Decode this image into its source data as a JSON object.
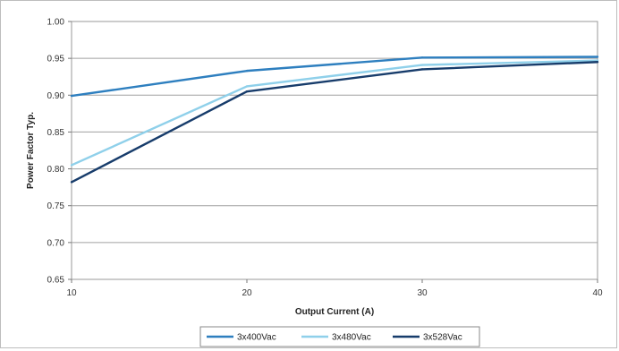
{
  "chart_data": {
    "type": "line",
    "xlabel": "Output Current (A)",
    "ylabel": "Power Factor Typ.",
    "x": [
      10,
      20,
      30,
      40
    ],
    "xlim": [
      10,
      40
    ],
    "ylim": [
      0.65,
      1.0
    ],
    "yticks": [
      "0.65",
      "0.70",
      "0.75",
      "0.80",
      "0.85",
      "0.90",
      "0.95",
      "1.00"
    ],
    "xticks": [
      "10",
      "20",
      "30",
      "40"
    ],
    "grid": "horizontal",
    "legend_position": "bottom",
    "series": [
      {
        "name": "3x400Vac",
        "values": [
          0.899,
          0.933,
          0.951,
          0.952
        ],
        "color": "#2e7fbf"
      },
      {
        "name": "3x480Vac",
        "values": [
          0.805,
          0.912,
          0.941,
          0.947
        ],
        "color": "#8fd0ea"
      },
      {
        "name": "3x528Vac",
        "values": [
          0.782,
          0.905,
          0.935,
          0.945
        ],
        "color": "#173c6b"
      }
    ]
  }
}
